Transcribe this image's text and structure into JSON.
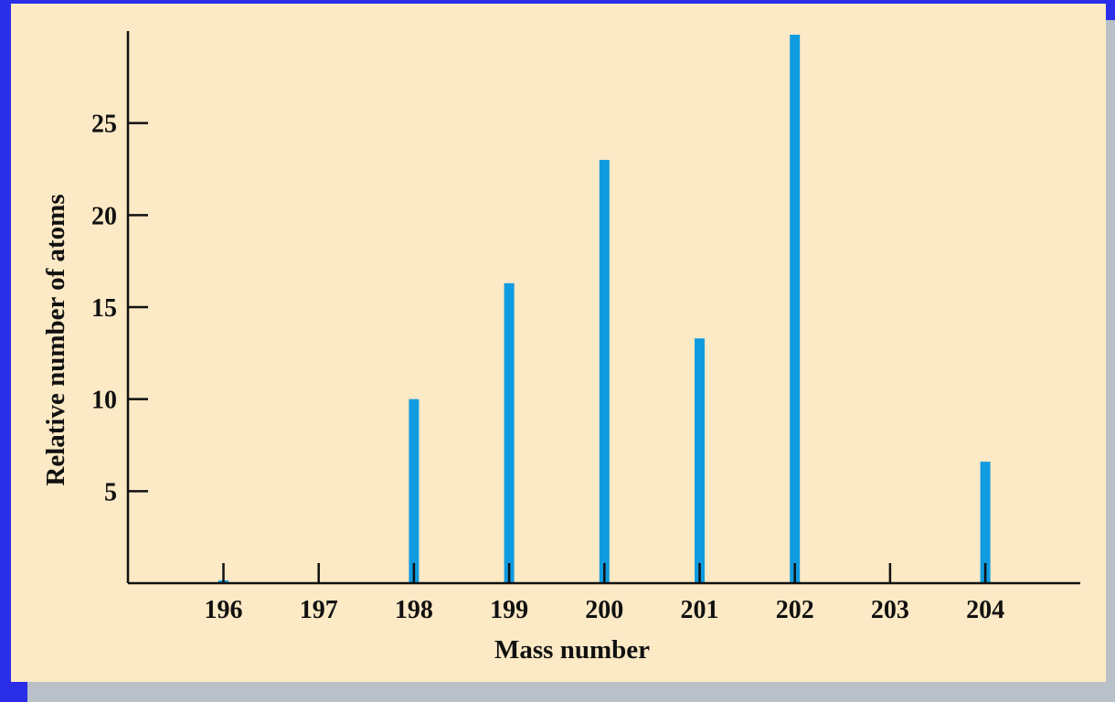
{
  "chart_data": {
    "type": "bar",
    "title": "",
    "xlabel": "Mass number",
    "ylabel": "Relative number of atoms",
    "categories": [
      "196",
      "197",
      "198",
      "199",
      "200",
      "201",
      "202",
      "203",
      "204"
    ],
    "values": [
      0.15,
      0,
      10.0,
      16.3,
      23.0,
      13.3,
      29.8,
      0,
      6.6
    ],
    "ylim": [
      0,
      30
    ],
    "yticks": [
      "5",
      "10",
      "15",
      "20",
      "25"
    ],
    "grid": false,
    "bar_color": "#0f9be0",
    "background_color": "#fce9c5",
    "frame_color": "#2a2ee8"
  }
}
